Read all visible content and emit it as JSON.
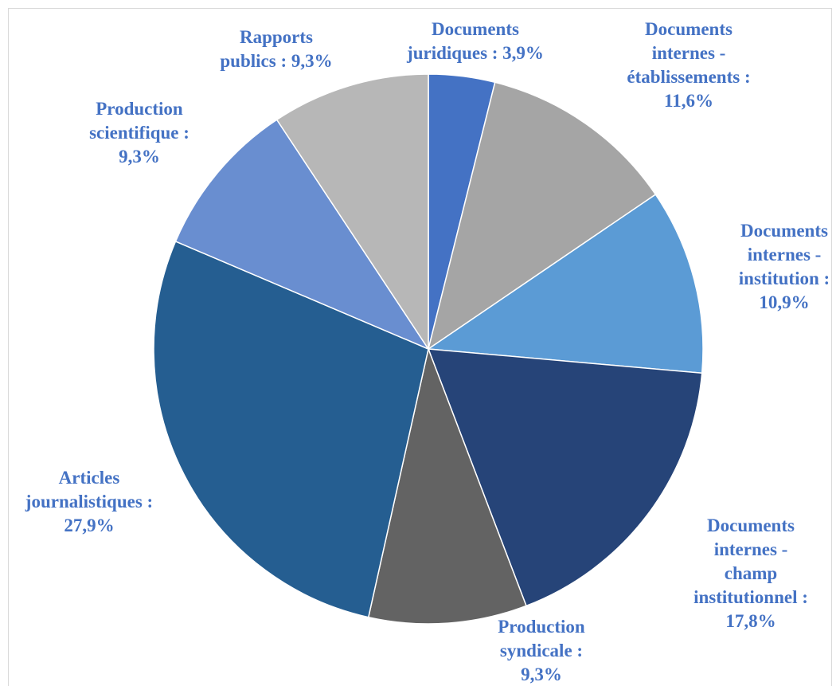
{
  "chart_data": {
    "type": "pie",
    "values": [
      3.9,
      11.6,
      10.9,
      17.8,
      9.3,
      27.9,
      9.3,
      9.3
    ],
    "value_labels": [
      "Documents juridiques : 3,9%",
      "Documents internes - établissements : 11,6%",
      "Documents internes - institution : 10,9%",
      "Documents internes - champ institutionnel : 17,8%",
      "Production syndicale : 9,3%",
      "Articles journalistiques : 27,9%",
      "Production scientifique : 9,3%",
      "Rapports publics : 9,3%"
    ],
    "colors": [
      "#4472c4",
      "#a5a5a5",
      "#5b9bd5",
      "#264478",
      "#636363",
      "#255e91",
      "#698ed0",
      "#b7b7b7"
    ],
    "label_color": "#4472c4"
  }
}
